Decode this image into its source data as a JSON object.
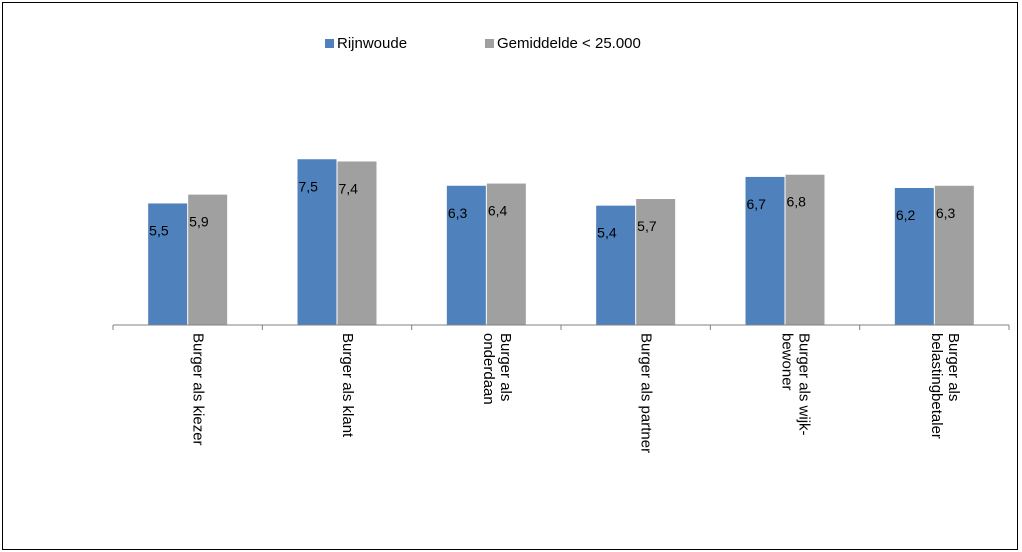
{
  "chart_data": {
    "type": "bar",
    "categories": [
      [
        "Burger als kiezer"
      ],
      [
        "Burger als klant"
      ],
      [
        "Burger als",
        "onderdaan"
      ],
      [
        "Burger als partner"
      ],
      [
        "Burger als wijk-",
        "bewoner"
      ],
      [
        "Burger als",
        "belastingbetaler"
      ]
    ],
    "series": [
      {
        "name": "Rijnwoude",
        "color": "#4f81bd",
        "values": [
          5.5,
          7.5,
          6.3,
          5.4,
          6.7,
          6.2
        ],
        "labels": [
          "5,5",
          "7,5",
          "6,3",
          "5,4",
          "6,7",
          "6,2"
        ]
      },
      {
        "name": "Gemiddelde < 25.000",
        "color": "#a0a0a0",
        "values": [
          5.9,
          7.4,
          6.4,
          5.7,
          6.8,
          6.3
        ],
        "labels": [
          "5,9",
          "7,4",
          "6,4",
          "5,7",
          "6,8",
          "6,3"
        ]
      }
    ],
    "ylim": [
      0,
      10
    ],
    "legend_position": "top",
    "grid": false
  }
}
